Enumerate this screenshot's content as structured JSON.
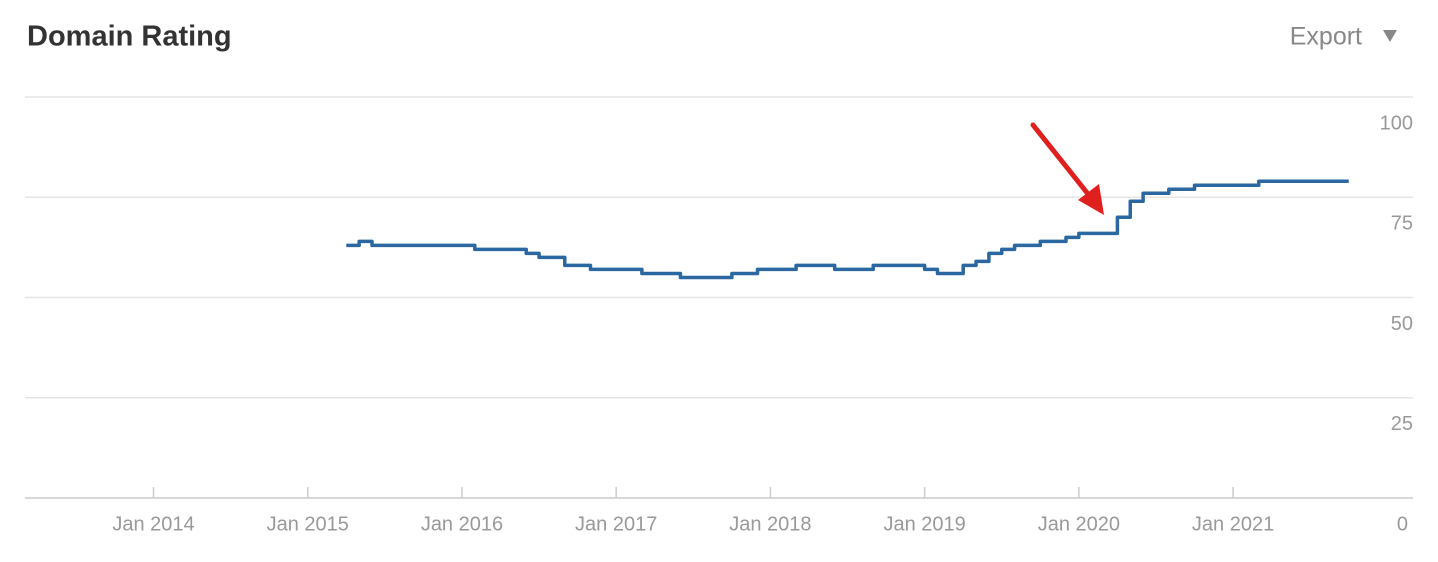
{
  "chart_data": {
    "type": "line",
    "title": "Domain Rating",
    "export_label": "Export",
    "step": true,
    "grid": true,
    "xlim": [
      "2013-03",
      "2022-03"
    ],
    "xticks": [
      {
        "value": "2014-01",
        "label": "Jan 2014"
      },
      {
        "value": "2015-01",
        "label": "Jan 2015"
      },
      {
        "value": "2016-01",
        "label": "Jan 2016"
      },
      {
        "value": "2017-01",
        "label": "Jan 2017"
      },
      {
        "value": "2018-01",
        "label": "Jan 2018"
      },
      {
        "value": "2019-01",
        "label": "Jan 2019"
      },
      {
        "value": "2020-01",
        "label": "Jan 2020"
      },
      {
        "value": "2021-01",
        "label": "Jan 2021"
      }
    ],
    "ylim": [
      0,
      100
    ],
    "yticks": [
      0,
      25,
      50,
      75,
      100
    ],
    "series": [
      {
        "name": "Domain Rating",
        "color": "#2b67a0",
        "x": [
          "2015-04",
          "2015-05",
          "2015-06",
          "2015-07",
          "2015-08",
          "2015-09",
          "2015-10",
          "2015-11",
          "2015-12",
          "2016-01",
          "2016-02",
          "2016-03",
          "2016-04",
          "2016-05",
          "2016-06",
          "2016-07",
          "2016-08",
          "2016-09",
          "2016-10",
          "2016-11",
          "2016-12",
          "2017-01",
          "2017-02",
          "2017-03",
          "2017-04",
          "2017-05",
          "2017-06",
          "2017-07",
          "2017-08",
          "2017-09",
          "2017-10",
          "2017-11",
          "2017-12",
          "2018-01",
          "2018-02",
          "2018-03",
          "2018-04",
          "2018-05",
          "2018-06",
          "2018-07",
          "2018-08",
          "2018-09",
          "2018-10",
          "2018-11",
          "2018-12",
          "2019-01",
          "2019-02",
          "2019-03",
          "2019-04",
          "2019-05",
          "2019-06",
          "2019-07",
          "2019-08",
          "2019-09",
          "2019-10",
          "2019-11",
          "2019-12",
          "2020-01",
          "2020-02",
          "2020-03",
          "2020-04",
          "2020-05",
          "2020-06",
          "2020-07",
          "2020-08",
          "2020-09",
          "2020-10",
          "2020-11",
          "2020-12",
          "2021-01",
          "2021-02",
          "2021-03",
          "2021-04",
          "2021-05",
          "2021-06",
          "2021-07",
          "2021-08",
          "2021-09",
          "2021-10"
        ],
        "values": [
          63,
          64,
          63,
          63,
          63,
          63,
          63,
          63,
          63,
          63,
          62,
          62,
          62,
          62,
          61,
          60,
          60,
          58,
          58,
          57,
          57,
          57,
          57,
          56,
          56,
          56,
          55,
          55,
          55,
          55,
          56,
          56,
          57,
          57,
          57,
          58,
          58,
          58,
          57,
          57,
          57,
          58,
          58,
          58,
          58,
          57,
          56,
          56,
          58,
          59,
          61,
          62,
          63,
          63,
          64,
          64,
          65,
          66,
          66,
          66,
          70,
          74,
          76,
          76,
          77,
          77,
          78,
          78,
          78,
          78,
          78,
          79,
          79,
          79,
          79,
          79,
          79,
          79,
          79
        ]
      }
    ]
  }
}
